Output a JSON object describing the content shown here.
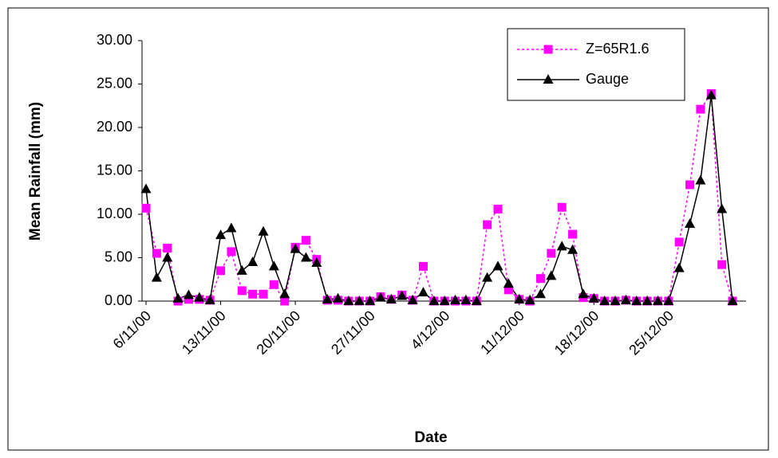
{
  "chart_data": {
    "type": "line",
    "x_label": "Date",
    "y_label": "Mean Rainfall (mm)",
    "categories": [
      "6/11/00",
      null,
      null,
      null,
      null,
      null,
      null,
      "13/11/00",
      null,
      null,
      null,
      null,
      null,
      null,
      "20/11/00",
      null,
      null,
      null,
      null,
      null,
      null,
      "27/11/00",
      null,
      null,
      null,
      null,
      null,
      null,
      "4/12/00",
      null,
      null,
      null,
      null,
      null,
      null,
      "11/12/00",
      null,
      null,
      null,
      null,
      null,
      null,
      "18/12/00",
      null,
      null,
      null,
      null,
      null,
      null,
      "25/12/00",
      null,
      null,
      null,
      null,
      null,
      null
    ],
    "series": [
      {
        "name": "Z=65R1.6",
        "color": "#ff00ff",
        "linestyle": "dotted",
        "marker": "square",
        "values": [
          10.7,
          5.5,
          6.1,
          0,
          0.2,
          0.2,
          0.1,
          3.5,
          5.7,
          1.2,
          0.8,
          0.8,
          1.9,
          0,
          6.2,
          7.0,
          4.8,
          0.1,
          0.1,
          0,
          0,
          0,
          0.5,
          0.2,
          0.7,
          0.1,
          4.0,
          0,
          0,
          0,
          0,
          0,
          8.8,
          10.6,
          1.3,
          0.2,
          0,
          2.6,
          5.5,
          10.8,
          7.7,
          0.4,
          0.3,
          0,
          0,
          0.1,
          0,
          0,
          0,
          0,
          6.8,
          13.4,
          22.1,
          23.9,
          4.2,
          0
        ]
      },
      {
        "name": "Gauge",
        "color": "#000000",
        "linestyle": "solid",
        "marker": "triangle",
        "values": [
          12.9,
          2.7,
          5.0,
          0.3,
          0.7,
          0.4,
          0.1,
          7.6,
          8.4,
          3.5,
          4.5,
          8.0,
          4.0,
          0.8,
          6.0,
          5.0,
          4.4,
          0.2,
          0.3,
          0,
          0,
          0,
          0.4,
          0.2,
          0.6,
          0.1,
          1.0,
          0,
          0,
          0.1,
          0.1,
          0,
          2.7,
          4.0,
          2.0,
          0.2,
          0.1,
          0.8,
          2.9,
          6.3,
          5.9,
          0.8,
          0.3,
          0,
          0,
          0.1,
          0,
          0,
          0,
          0,
          3.8,
          8.9,
          13.9,
          23.7,
          10.6,
          0
        ]
      }
    ],
    "ylim": [
      0,
      30
    ],
    "yticks": [
      {
        "value": 0,
        "label": "0.00"
      },
      {
        "value": 5,
        "label": "5.00"
      },
      {
        "value": 10,
        "label": "10.00"
      },
      {
        "value": 15,
        "label": "15.00"
      },
      {
        "value": 20,
        "label": "20.00"
      },
      {
        "value": 25,
        "label": "25.00"
      },
      {
        "value": 30,
        "label": "30.00"
      }
    ],
    "grid": false,
    "legend": "upper right"
  }
}
